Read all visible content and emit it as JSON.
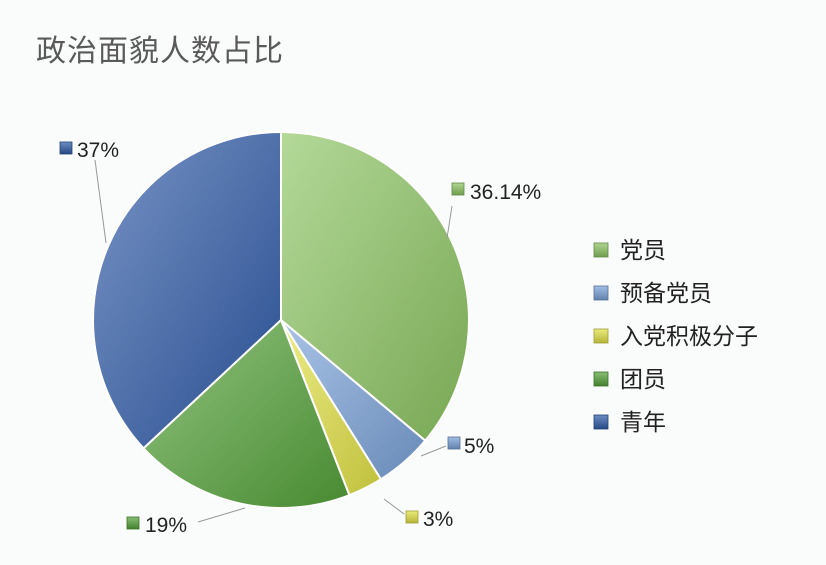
{
  "chart_data": {
    "type": "pie",
    "title": "政治面貌人数占比",
    "categories": [
      "党员",
      "预备党员",
      "入党积极分子",
      "团员",
      "青年"
    ],
    "values": [
      36.14,
      5,
      3,
      19,
      37
    ],
    "data_labels": [
      "36.14%",
      "5%",
      "3%",
      "19%",
      "37%"
    ],
    "colors": [
      "#8cc462",
      "#7aa2d8",
      "#e2e247",
      "#55a23a",
      "#2f5ba8"
    ],
    "legend": "right",
    "start_angle": "12 o'clock, clockwise"
  }
}
